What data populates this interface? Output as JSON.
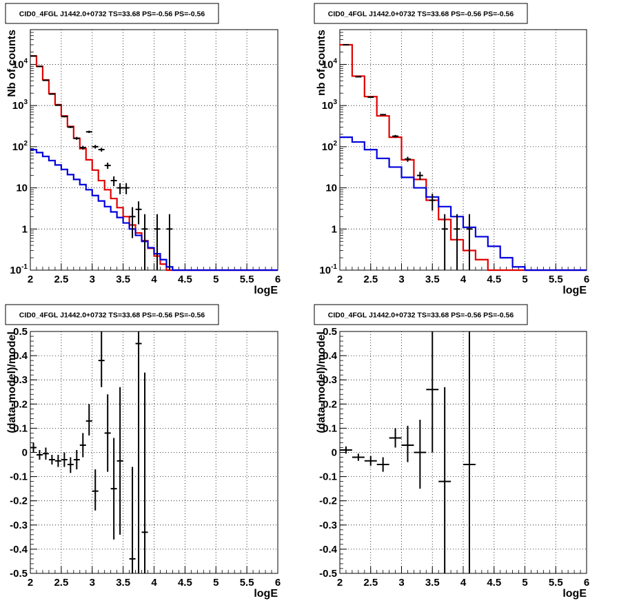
{
  "chart_data": [
    {
      "type": "step-histogram",
      "title": "CID0_4FGL J1442.0+0732 TS=33.68 PS=-0.56 PS=-0.56",
      "xlabel": "logE",
      "ylabel": "Nb of counts",
      "xlim": [
        2,
        6
      ],
      "ylim": [
        0.1,
        70000
      ],
      "yscale": "log",
      "grid": true,
      "xticks": [
        "2",
        "2.5",
        "3",
        "3.5",
        "4",
        "4.5",
        "5",
        "5.5",
        "6"
      ],
      "yticks": [
        "10^-1",
        "1",
        "10",
        "10^2",
        "10^3",
        "10^4"
      ],
      "bin_edges": [
        2.0,
        2.1,
        2.2,
        2.3,
        2.4,
        2.5,
        2.6,
        2.7,
        2.8,
        2.9,
        3.0,
        3.1,
        3.2,
        3.3,
        3.4,
        3.5,
        3.6,
        3.7,
        3.8,
        3.9,
        4.0,
        4.1,
        4.2,
        4.3,
        4.4,
        4.5,
        4.6,
        4.7,
        4.8,
        4.9,
        5.0,
        5.1,
        5.2,
        5.3,
        5.4,
        5.5,
        5.6,
        5.7,
        5.8,
        5.9,
        6.0
      ],
      "series": [
        {
          "color": "#e00000",
          "values": [
            16000,
            9000,
            4200,
            1950,
            1050,
            560,
            310,
            160,
            90,
            48,
            27,
            15,
            9,
            5.5,
            3.3,
            2,
            1.25,
            0.8,
            0.52,
            0.34,
            0.22,
            0.14,
            0.1,
            0.1,
            0.1,
            0.1,
            0.1,
            0.1,
            0.1,
            0.1,
            0.1,
            0.1,
            0.1,
            0.1,
            0.1,
            0.1,
            0.1,
            0.1,
            0.1,
            0.1
          ]
        },
        {
          "color": "#0000dd",
          "values": [
            85,
            72,
            58,
            46,
            36,
            28,
            21,
            16,
            12,
            9,
            6.5,
            4.8,
            3.5,
            2.6,
            1.9,
            1.4,
            1,
            0.7,
            0.5,
            0.35,
            0.25,
            0.18,
            0.12,
            0.1,
            0.1,
            0.1,
            0.1,
            0.1,
            0.1,
            0.1,
            0.1,
            0.1,
            0.1,
            0.1,
            0.1,
            0.1,
            0.1,
            0.1,
            0.1,
            0.1
          ]
        }
      ],
      "data_points": [
        {
          "x": 2.05,
          "y": 16000,
          "lo": 15800,
          "hi": 16200
        },
        {
          "x": 2.15,
          "y": 8900,
          "lo": 8800,
          "hi": 9000
        },
        {
          "x": 2.25,
          "y": 4100,
          "lo": 4030,
          "hi": 4170
        },
        {
          "x": 2.35,
          "y": 1900,
          "lo": 1860,
          "hi": 1940
        },
        {
          "x": 2.45,
          "y": 1020,
          "lo": 990,
          "hi": 1050
        },
        {
          "x": 2.55,
          "y": 540,
          "lo": 517,
          "hi": 563
        },
        {
          "x": 2.65,
          "y": 300,
          "lo": 283,
          "hi": 317
        },
        {
          "x": 2.75,
          "y": 160,
          "lo": 147,
          "hi": 173
        },
        {
          "x": 2.85,
          "y": 95,
          "lo": 85,
          "hi": 105
        },
        {
          "x": 2.95,
          "y": 230,
          "lo": 215,
          "hi": 245
        },
        {
          "x": 3.05,
          "y": 100,
          "lo": 90,
          "hi": 110
        },
        {
          "x": 3.15,
          "y": 85,
          "lo": 76,
          "hi": 94
        },
        {
          "x": 3.25,
          "y": 35,
          "lo": 29,
          "hi": 41
        },
        {
          "x": 3.35,
          "y": 15,
          "lo": 11,
          "hi": 19
        },
        {
          "x": 3.45,
          "y": 10,
          "lo": 7,
          "hi": 13
        },
        {
          "x": 3.55,
          "y": 10,
          "lo": 7,
          "hi": 13
        },
        {
          "x": 3.65,
          "y": 2,
          "lo": 0.6,
          "hi": 3.4
        },
        {
          "x": 3.75,
          "y": 3,
          "lo": 1.3,
          "hi": 4.7
        },
        {
          "x": 3.85,
          "y": 1,
          "lo": 0.1,
          "hi": 2.3
        },
        {
          "x": 4.05,
          "y": 1,
          "lo": 0.1,
          "hi": 2.3
        },
        {
          "x": 4.25,
          "y": 1,
          "lo": 0.1,
          "hi": 2.3
        }
      ]
    },
    {
      "type": "step-histogram",
      "title": "CID0_4FGL J1442.0+0732 TS=33.68 PS=-0.56 PS=-0.56",
      "xlabel": "logE",
      "ylabel": "nb of counts",
      "xlim": [
        2,
        6
      ],
      "ylim": [
        0.1,
        70000
      ],
      "yscale": "log",
      "grid": true,
      "xticks": [
        "2",
        "2.5",
        "3",
        "3.5",
        "4",
        "4.5",
        "5",
        "5.5",
        "6"
      ],
      "yticks": [
        "10^-1",
        "1",
        "10",
        "10^2",
        "10^3",
        "10^4"
      ],
      "bin_edges": [
        2.0,
        2.2,
        2.4,
        2.6,
        2.8,
        3.0,
        3.2,
        3.4,
        3.6,
        3.8,
        4.0,
        4.2,
        4.4,
        4.6,
        4.8,
        5.0,
        5.2,
        5.4,
        5.6,
        5.8,
        6.0
      ],
      "series": [
        {
          "color": "#e00000",
          "values": [
            30000,
            5200,
            1650,
            560,
            170,
            48,
            16,
            5,
            1.7,
            0.55,
            0.3,
            0.18,
            0.1,
            0.1,
            0.1,
            0.1,
            0.1,
            0.1,
            0.1,
            0.1
          ]
        },
        {
          "color": "#0000dd",
          "values": [
            170,
            130,
            85,
            52,
            32,
            18,
            10,
            6,
            3.5,
            2,
            1.1,
            0.65,
            0.38,
            0.2,
            0.12,
            0.1,
            0.1,
            0.1,
            0.1,
            0.1
          ]
        }
      ],
      "data_points": [
        {
          "x": 2.1,
          "y": 30000,
          "lo": 29800,
          "hi": 30200
        },
        {
          "x": 2.3,
          "y": 5000,
          "lo": 4930,
          "hi": 5070
        },
        {
          "x": 2.5,
          "y": 1600,
          "lo": 1560,
          "hi": 1640
        },
        {
          "x": 2.7,
          "y": 600,
          "lo": 575,
          "hi": 625
        },
        {
          "x": 2.9,
          "y": 180,
          "lo": 167,
          "hi": 193
        },
        {
          "x": 3.1,
          "y": 50,
          "lo": 43,
          "hi": 57
        },
        {
          "x": 3.3,
          "y": 20,
          "lo": 15.5,
          "hi": 24.5
        },
        {
          "x": 3.5,
          "y": 5,
          "lo": 2.8,
          "hi": 7.2
        },
        {
          "x": 3.7,
          "y": 1,
          "lo": 0.1,
          "hi": 2.3
        },
        {
          "x": 3.9,
          "y": 1,
          "lo": 0.1,
          "hi": 2.3
        },
        {
          "x": 4.1,
          "y": 1,
          "lo": 0.1,
          "hi": 2.3
        }
      ]
    },
    {
      "type": "scatter-errorbar",
      "title": "CID0_4FGL J1442.0+0732 TS=33.68 PS=-0.56 PS=-0.56",
      "xlabel": "logE",
      "ylabel": "(data-model)/model",
      "xlim": [
        2,
        6
      ],
      "ylim": [
        -0.5,
        0.5
      ],
      "grid": true,
      "xticks": [
        "2",
        "2.5",
        "3",
        "3.5",
        "4",
        "4.5",
        "5",
        "5.5",
        "6"
      ],
      "yticks": [
        "-0.5",
        "-0.4",
        "-0.3",
        "-0.2",
        "-0.1",
        "0",
        "0.1",
        "0.2",
        "0.3",
        "0.4",
        "0.5"
      ],
      "xerr": 0.05,
      "data_points": [
        {
          "x": 2.05,
          "y": 0.02,
          "lo": 0.0,
          "hi": 0.04
        },
        {
          "x": 2.15,
          "y": -0.01,
          "lo": -0.03,
          "hi": 0.01
        },
        {
          "x": 2.25,
          "y": -0.005,
          "lo": -0.03,
          "hi": 0.02
        },
        {
          "x": 2.35,
          "y": -0.03,
          "lo": -0.05,
          "hi": -0.01
        },
        {
          "x": 2.45,
          "y": -0.035,
          "lo": -0.06,
          "hi": -0.01
        },
        {
          "x": 2.55,
          "y": -0.03,
          "lo": -0.06,
          "hi": 0.0
        },
        {
          "x": 2.65,
          "y": -0.05,
          "lo": -0.085,
          "hi": -0.02
        },
        {
          "x": 2.75,
          "y": -0.03,
          "lo": -0.07,
          "hi": 0.01
        },
        {
          "x": 2.85,
          "y": 0.03,
          "lo": -0.02,
          "hi": 0.08
        },
        {
          "x": 2.95,
          "y": 0.13,
          "lo": 0.07,
          "hi": 0.2
        },
        {
          "x": 3.05,
          "y": -0.16,
          "lo": -0.24,
          "hi": -0.07
        },
        {
          "x": 3.15,
          "y": 0.38,
          "lo": 0.27,
          "hi": 0.5
        },
        {
          "x": 3.25,
          "y": 0.08,
          "lo": -0.08,
          "hi": 0.24
        },
        {
          "x": 3.35,
          "y": -0.15,
          "lo": -0.36,
          "hi": 0.06
        },
        {
          "x": 3.45,
          "y": -0.035,
          "lo": -0.34,
          "hi": 0.27
        },
        {
          "x": 3.65,
          "y": -0.44,
          "lo": -0.5,
          "hi": -0.06
        },
        {
          "x": 3.75,
          "y": 0.45,
          "lo": -0.5,
          "hi": 0.5
        },
        {
          "x": 3.85,
          "y": -0.33,
          "lo": -0.5,
          "hi": 0.33
        }
      ]
    },
    {
      "type": "scatter-errorbar",
      "title": "CID0_4FGL J1442.0+0732 TS=33.68 PS=-0.56 PS=-0.56",
      "xlabel": "logE",
      "ylabel": "(data-model)/model",
      "xlim": [
        2,
        6
      ],
      "ylim": [
        -0.5,
        0.5
      ],
      "grid": true,
      "xticks": [
        "2",
        "2.5",
        "3",
        "3.5",
        "4",
        "4.5",
        "5",
        "5.5",
        "6"
      ],
      "yticks": [
        "-0.5",
        "-0.4",
        "-0.3",
        "-0.2",
        "-0.1",
        "0",
        "0.1",
        "0.2",
        "0.3",
        "0.4",
        "0.5"
      ],
      "xerr": 0.1,
      "data_points": [
        {
          "x": 2.1,
          "y": 0.01,
          "lo": -0.005,
          "hi": 0.025
        },
        {
          "x": 2.3,
          "y": -0.02,
          "lo": -0.035,
          "hi": -0.005
        },
        {
          "x": 2.5,
          "y": -0.035,
          "lo": -0.055,
          "hi": -0.015
        },
        {
          "x": 2.7,
          "y": -0.05,
          "lo": -0.08,
          "hi": -0.02
        },
        {
          "x": 2.9,
          "y": 0.06,
          "lo": 0.02,
          "hi": 0.1
        },
        {
          "x": 3.1,
          "y": 0.03,
          "lo": -0.04,
          "hi": 0.11
        },
        {
          "x": 3.3,
          "y": 0.0,
          "lo": -0.15,
          "hi": 0.135
        },
        {
          "x": 3.5,
          "y": 0.26,
          "lo": 0.0,
          "hi": 0.5
        },
        {
          "x": 3.7,
          "y": -0.12,
          "lo": -0.5,
          "hi": 0.27
        },
        {
          "x": 4.1,
          "y": -0.05,
          "lo": -0.5,
          "hi": 0.5
        }
      ]
    }
  ]
}
